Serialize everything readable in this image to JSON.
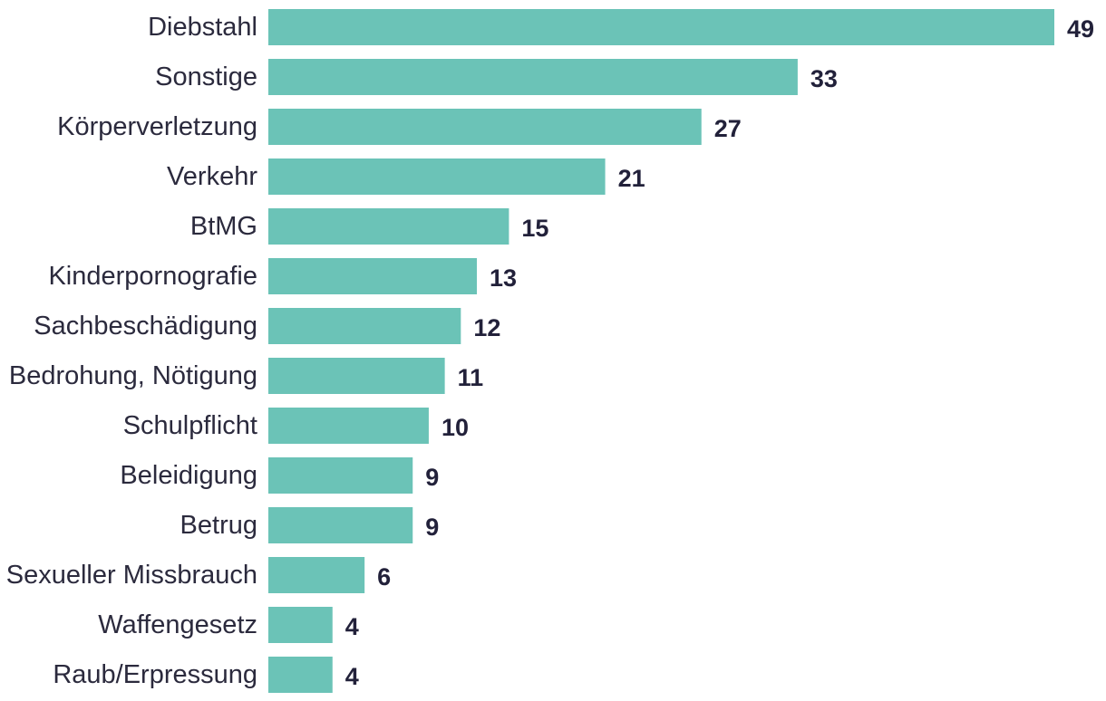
{
  "chart_data": {
    "type": "bar",
    "orientation": "horizontal",
    "categories": [
      "Diebstahl",
      "Sonstige",
      "Körperverletzung",
      "Verkehr",
      "BtMG",
      "Kinderpornografie",
      "Sachbeschädigung",
      "Bedrohung, Nötigung",
      "Schulpflicht",
      "Beleidigung",
      "Betrug",
      "Sexueller Missbrauch",
      "Waffengesetz",
      "Raub/Erpressung"
    ],
    "values": [
      49,
      33,
      27,
      21,
      15,
      13,
      12,
      11,
      10,
      9,
      9,
      6,
      4,
      4
    ],
    "value_labels": [
      "49",
      "33",
      "27",
      "21",
      "15",
      "13",
      "12",
      "11",
      "10",
      "9",
      "9",
      "6",
      "4",
      "4"
    ],
    "xlim": [
      0,
      49
    ],
    "grid": false,
    "bar_color": "#6bc3b7",
    "value_label_color": "#22213a",
    "category_label_color": "#2b2a3d"
  }
}
